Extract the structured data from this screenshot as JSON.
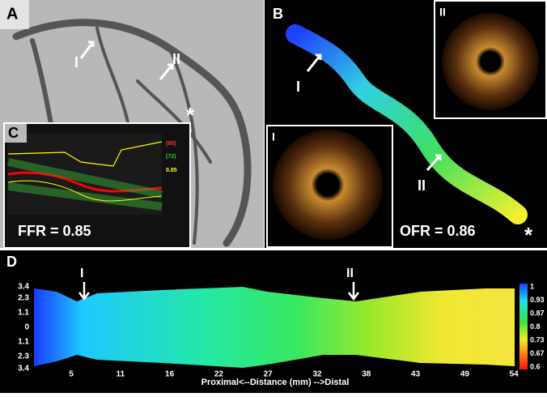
{
  "panels": {
    "a": {
      "label": "A",
      "markers": [
        "I",
        "II",
        "*"
      ]
    },
    "b": {
      "label": "B",
      "markers": [
        "I",
        "II",
        "*"
      ],
      "result": "OFR = 0.86",
      "insets": [
        "II",
        "I"
      ]
    },
    "c": {
      "label": "C",
      "result": "FFR = 0.85",
      "readouts": [
        "(85)",
        "(72)",
        "0.85"
      ]
    },
    "d": {
      "label": "D",
      "markers": [
        "I",
        "II"
      ],
      "yticks": [
        "3.4",
        "2.3",
        "1.1",
        "0",
        "1.1",
        "2.3",
        "3.4"
      ],
      "xticks": [
        "5",
        "11",
        "16",
        "22",
        "27",
        "32",
        "38",
        "43",
        "49",
        "54"
      ],
      "xlabel": "Proximal<--Distance (mm) -->Distal",
      "colorbar": [
        "1",
        "0.93",
        "0.87",
        "0.8",
        "0.73",
        "0.67",
        "0.6"
      ]
    }
  }
}
